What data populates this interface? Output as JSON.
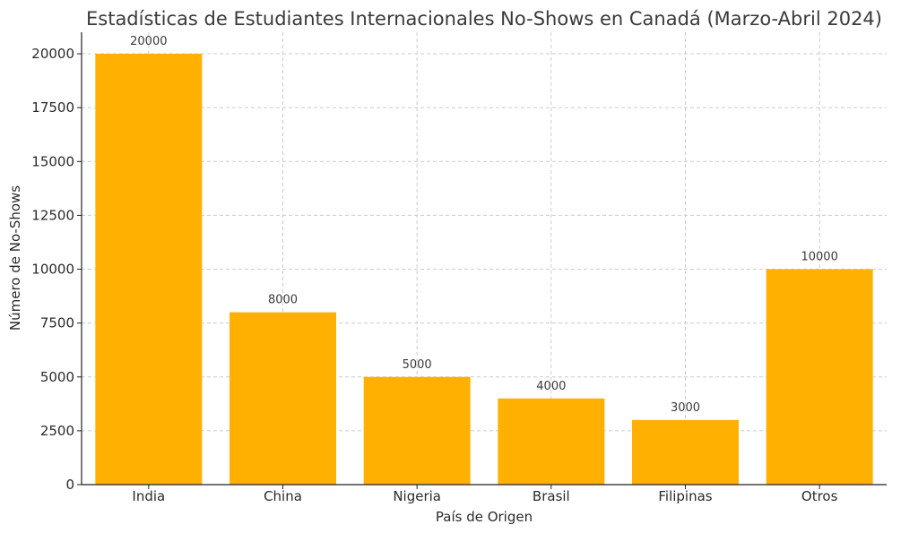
{
  "chart_data": {
    "type": "bar",
    "title": "Estadísticas de Estudiantes Internacionales No-Shows en Canadá (Marzo-Abril 2024)",
    "xlabel": "País de Origen",
    "ylabel": "Número de No-Shows",
    "categories": [
      "India",
      "China",
      "Nigeria",
      "Brasil",
      "Filipinas",
      "Otros"
    ],
    "values": [
      20000,
      8000,
      5000,
      4000,
      3000,
      10000
    ],
    "ylim": [
      0,
      21000
    ],
    "yticks": [
      0,
      2500,
      5000,
      7500,
      10000,
      12500,
      15000,
      17500,
      20000
    ],
    "grid": true,
    "bar_color": "#FFB000",
    "show_data_labels": true
  }
}
